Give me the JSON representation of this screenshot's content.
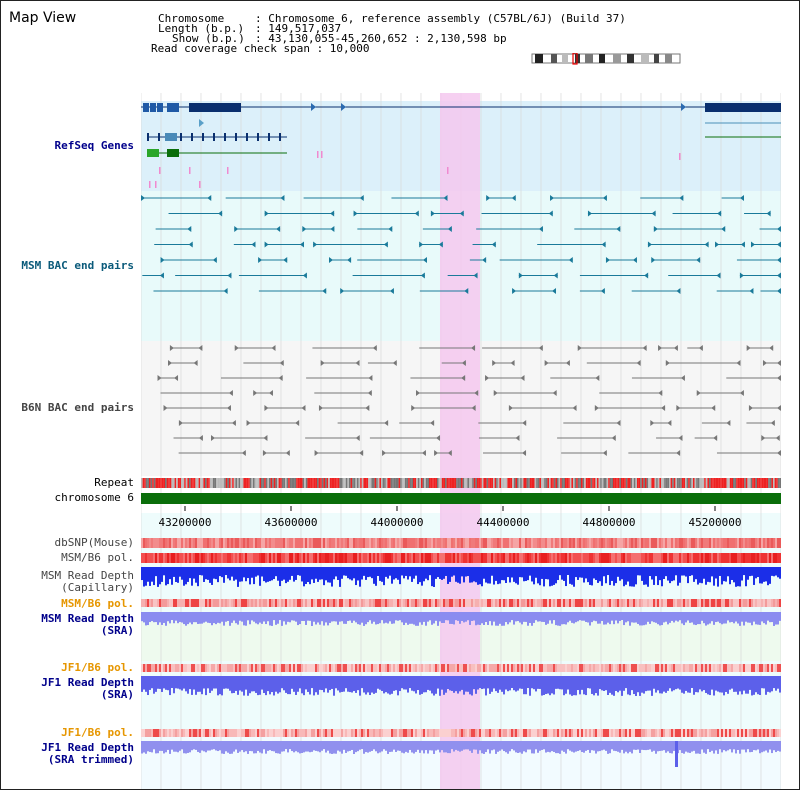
{
  "header": {
    "title": "Map View",
    "chromosome_key": "Chromosome",
    "chromosome_val": ": Chromosome 6, reference assembly (C57BL/6J) (Build 37)",
    "length_key": "Length (b.p.)",
    "length_val": ": 149,517,037",
    "show_key": "Show (b.p.)",
    "show_val": ": 43,130,055-45,260,652 : 2,130,598 bp",
    "coverage_line": "Read coverage check span : 10,000"
  },
  "tracks": {
    "refseq": "RefSeq Genes",
    "msm_bac": "MSM BAC end pairs",
    "b6n_bac": "B6N BAC end pairs",
    "repeat": "Repeat",
    "chromosome": "chromosome 6",
    "dbsnp": "dbSNP(Mouse)",
    "msm_b6_pol": "MSM/B6 pol.",
    "msm_depth_cap_1": "MSM Read Depth",
    "msm_depth_cap_2": "(Capillary)",
    "msm_b6_pol_sra": "MSM/B6 pol.",
    "msm_depth_sra_1": "MSM Read Depth",
    "msm_depth_sra_2": "(SRA)",
    "jf1_b6_pol": "JF1/B6 pol.",
    "jf1_depth_1": "JF1 Read Depth",
    "jf1_depth_2": "(SRA)",
    "jf1_b6_pol_trim": "JF1/B6 pol.",
    "jf1_trim_1": "JF1 Read Depth",
    "jf1_trim_2": "(SRA trimmed)"
  },
  "axis": {
    "ticks": [
      "43200000",
      "43600000",
      "44000000",
      "44400000",
      "44800000",
      "45200000"
    ]
  },
  "colors": {
    "refseq_bg": "#dcf0fa",
    "bac_bg": "#e8fafa",
    "highlight": "#f4c8ee",
    "gene_dark": "#0a2f6e",
    "msm_line": "#1a7a9a",
    "b6n_line": "#777777",
    "chromosome_bar": "#0a6e0a",
    "depth_blue": "#1b2ee8",
    "depth_light": "#8a8cf0",
    "label_blue": "#00008b",
    "label_orange": "#e69600"
  }
}
